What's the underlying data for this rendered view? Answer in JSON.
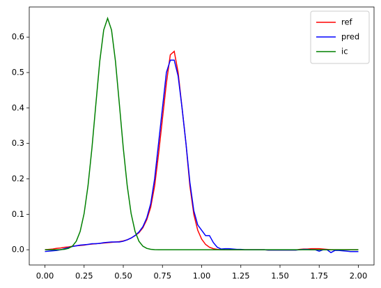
{
  "chart_data": {
    "type": "line",
    "x": [
      0,
      0.025,
      0.05,
      0.075,
      0.1,
      0.125,
      0.15,
      0.175,
      0.2,
      0.225,
      0.25,
      0.275,
      0.3,
      0.325,
      0.35,
      0.375,
      0.4,
      0.425,
      0.45,
      0.475,
      0.5,
      0.525,
      0.55,
      0.575,
      0.6,
      0.625,
      0.65,
      0.675,
      0.7,
      0.725,
      0.75,
      0.775,
      0.8,
      0.825,
      0.85,
      0.875,
      0.9,
      0.925,
      0.95,
      0.975,
      1,
      1.025,
      1.05,
      1.075,
      1.1,
      1.125,
      1.15,
      1.175,
      1.2,
      1.225,
      1.25,
      1.275,
      1.3,
      1.325,
      1.35,
      1.375,
      1.4,
      1.425,
      1.45,
      1.475,
      1.5,
      1.525,
      1.55,
      1.575,
      1.6,
      1.625,
      1.65,
      1.675,
      1.7,
      1.725,
      1.75,
      1.775,
      1.8,
      1.825,
      1.85,
      1.875,
      1.9,
      1.925,
      1.95,
      1.975,
      2
    ],
    "series": [
      {
        "name": "ref",
        "color": "#ff0000",
        "values": [
          0,
          0.001,
          0.002,
          0.004,
          0.005,
          0.007,
          0.008,
          0.01,
          0.011,
          0.012,
          0.013,
          0.015,
          0.016,
          0.017,
          0.018,
          0.019,
          0.02,
          0.021,
          0.022,
          0.023,
          0.025,
          0.028,
          0.033,
          0.04,
          0.048,
          0.062,
          0.085,
          0.12,
          0.18,
          0.27,
          0.37,
          0.47,
          0.55,
          0.56,
          0.5,
          0.4,
          0.3,
          0.18,
          0.1,
          0.055,
          0.03,
          0.015,
          0.007,
          0.003,
          0.001,
          0,
          0,
          0,
          0,
          0,
          0,
          0,
          0,
          0,
          0,
          0,
          0,
          -0.001,
          -0.001,
          -0.001,
          -0.001,
          -0.001,
          -0.001,
          -0.001,
          -0.001,
          0.001,
          0.002,
          0.002,
          0.003,
          0.003,
          0.003,
          0.002,
          0.001,
          0,
          0,
          0,
          0,
          0,
          0,
          0,
          0
        ]
      },
      {
        "name": "pred",
        "color": "#0000ff",
        "values": [
          -0.005,
          -0.004,
          -0.003,
          -0.002,
          0,
          0.003,
          0.006,
          0.009,
          0.011,
          0.013,
          0.014,
          0.015,
          0.017,
          0.017,
          0.018,
          0.02,
          0.021,
          0.022,
          0.022,
          0.022,
          0.024,
          0.028,
          0.033,
          0.04,
          0.05,
          0.065,
          0.09,
          0.13,
          0.2,
          0.3,
          0.4,
          0.5,
          0.535,
          0.535,
          0.49,
          0.4,
          0.3,
          0.19,
          0.11,
          0.07,
          0.055,
          0.04,
          0.04,
          0.02,
          0.007,
          0.002,
          0.003,
          0.003,
          0.002,
          0.001,
          0.001,
          0,
          0,
          0,
          0,
          0,
          0,
          -0.001,
          -0.001,
          -0.001,
          -0.001,
          -0.001,
          -0.001,
          -0.001,
          -0.001,
          0,
          0.001,
          0.001,
          0,
          0,
          -0.004,
          0,
          0,
          -0.008,
          -0.002,
          -0.002,
          -0.003,
          -0.004,
          -0.005,
          -0.005,
          -0.005
        ]
      },
      {
        "name": "ic",
        "color": "#008000",
        "values": [
          0,
          1e-05,
          3e-05,
          0.0001,
          0.0004,
          0.0013,
          0.0038,
          0.01,
          0.024,
          0.052,
          0.102,
          0.181,
          0.287,
          0.411,
          0.532,
          0.62,
          0.653,
          0.62,
          0.532,
          0.411,
          0.287,
          0.181,
          0.102,
          0.052,
          0.024,
          0.01,
          0.0038,
          0.0013,
          0.0004,
          0.0001,
          0,
          0,
          0,
          0,
          0,
          0,
          0,
          0,
          0,
          0,
          0,
          0,
          0,
          0,
          0,
          0,
          0,
          0,
          0,
          0,
          0,
          0,
          0,
          0,
          0,
          0,
          0,
          0,
          0,
          0,
          0,
          0,
          0,
          0,
          0,
          0,
          0,
          0,
          0,
          0,
          0,
          0,
          0,
          0,
          0,
          0,
          0,
          0,
          0,
          0,
          0
        ]
      }
    ],
    "xlim": [
      -0.1,
      2.1
    ],
    "xticks": [
      {
        "value": 0,
        "label": "0.00"
      },
      0.25,
      {
        "value": 0.5,
        "label": "0.50"
      },
      0.75,
      {
        "value": 1,
        "label": "1.00"
      },
      1.25,
      {
        "value": 1.5,
        "label": "1.50"
      },
      1.75,
      {
        "value": 2,
        "label": "2.00"
      }
    ],
    "ylim": [
      -0.043,
      0.685
    ],
    "yticks": [
      {
        "value": 0,
        "label": "0.0"
      },
      0.1,
      0.2,
      0.3,
      0.4,
      0.5,
      0.6
    ],
    "legend": "upper right"
  }
}
